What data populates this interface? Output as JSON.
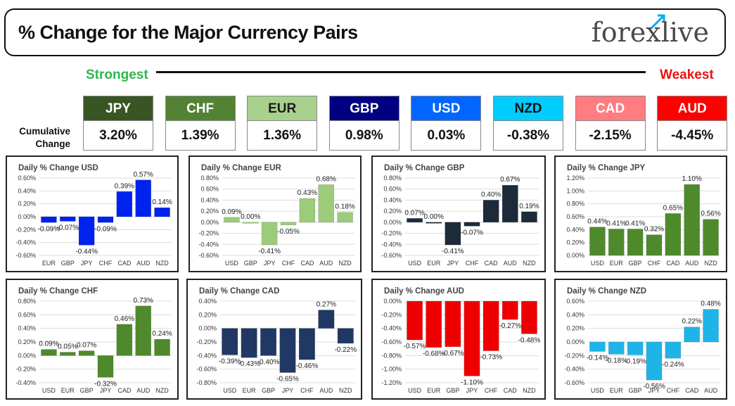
{
  "header": {
    "title": "% Change for the Major Currency Pairs",
    "logo": "forexlive"
  },
  "ranking": {
    "strongest_label": "Strongest",
    "weakest_label": "Weakest",
    "cumulative_label_1": "Cumulative",
    "cumulative_label_2": "Change",
    "currencies": [
      {
        "name": "JPY",
        "value": "3.20%",
        "bg": "#375623",
        "fg": "#ffffff"
      },
      {
        "name": "CHF",
        "value": "1.39%",
        "bg": "#548235",
        "fg": "#ffffff"
      },
      {
        "name": "EUR",
        "value": "1.36%",
        "bg": "#a9d18e",
        "fg": "#1a1a1a"
      },
      {
        "name": "GBP",
        "value": "0.98%",
        "bg": "#000080",
        "fg": "#ffffff"
      },
      {
        "name": "USD",
        "value": "0.03%",
        "bg": "#0066ff",
        "fg": "#ffffff"
      },
      {
        "name": "NZD",
        "value": "-0.38%",
        "bg": "#00ccff",
        "fg": "#111111"
      },
      {
        "name": "CAD",
        "value": "-2.15%",
        "bg": "#ff7c80",
        "fg": "#ffffff"
      },
      {
        "name": "AUD",
        "value": "-4.45%",
        "bg": "#ff0000",
        "fg": "#ffffff"
      }
    ]
  },
  "chart_data": [
    {
      "type": "bar",
      "title": "Daily % Change USD",
      "categories": [
        "EUR",
        "GBP",
        "JPY",
        "CHF",
        "CAD",
        "AUD",
        "NZD"
      ],
      "values": [
        -0.09,
        -0.07,
        -0.44,
        -0.09,
        0.39,
        0.57,
        0.14
      ],
      "value_labels": [
        "-0.09%",
        "-0.07%",
        "-0.44%",
        "-0.09%",
        "0.39%",
        "0.57%",
        "0.14%"
      ],
      "ylim": [
        -0.6,
        0.6
      ],
      "ticks": [
        "-0.60%",
        "-0.40%",
        "-0.20%",
        "0.00%",
        "0.20%",
        "0.40%",
        "0.60%"
      ],
      "color": "#0022ee"
    },
    {
      "type": "bar",
      "title": "Daily % Change EUR",
      "categories": [
        "USD",
        "GBP",
        "JPY",
        "CHF",
        "CAD",
        "AUD",
        "NZD"
      ],
      "values": [
        0.09,
        0.0,
        -0.41,
        -0.05,
        0.43,
        0.68,
        0.18
      ],
      "value_labels": [
        "0.09%",
        "0.00%",
        "-0.41%",
        "-0.05%",
        "0.43%",
        "0.68%",
        "0.18%"
      ],
      "ylim": [
        -0.6,
        0.8
      ],
      "ticks": [
        "-0.60%",
        "-0.40%",
        "-0.20%",
        "0.00%",
        "0.20%",
        "0.40%",
        "0.60%",
        "0.80%"
      ],
      "color": "#9ccb7a"
    },
    {
      "type": "bar",
      "title": "Daily % Change GBP",
      "categories": [
        "USD",
        "EUR",
        "JPY",
        "CHF",
        "CAD",
        "AUD",
        "NZD"
      ],
      "values": [
        0.07,
        0.0,
        -0.41,
        -0.07,
        0.4,
        0.67,
        0.19
      ],
      "value_labels": [
        "0.07%",
        "0.00%",
        "-0.41%",
        "-0.07%",
        "0.40%",
        "0.67%",
        "0.19%"
      ],
      "ylim": [
        -0.6,
        0.8
      ],
      "ticks": [
        "-0.60%",
        "-0.40%",
        "-0.20%",
        "0.00%",
        "0.20%",
        "0.40%",
        "0.60%",
        "0.80%"
      ],
      "color": "#1c2a3a"
    },
    {
      "type": "bar",
      "title": "Daily % Change JPY",
      "categories": [
        "USD",
        "EUR",
        "GBP",
        "CHF",
        "CAD",
        "AUD",
        "NZD"
      ],
      "values": [
        0.44,
        0.41,
        0.41,
        0.32,
        0.65,
        1.1,
        0.56
      ],
      "value_labels": [
        "0.44%",
        "0.41%",
        "0.41%",
        "0.32%",
        "0.65%",
        "1.10%",
        "0.56%"
      ],
      "ylim": [
        0,
        1.2
      ],
      "ticks": [
        "0.00%",
        "0.20%",
        "0.40%",
        "0.60%",
        "0.80%",
        "1.00%",
        "1.20%"
      ],
      "color": "#4e8a2c"
    },
    {
      "type": "bar",
      "title": "Daily % Change CHF",
      "categories": [
        "USD",
        "EUR",
        "GBP",
        "JPY",
        "CAD",
        "AUD",
        "NZD"
      ],
      "values": [
        0.09,
        0.05,
        0.07,
        -0.32,
        0.46,
        0.73,
        0.24
      ],
      "value_labels": [
        "0.09%",
        "0.05%",
        "0.07%",
        "-0.32%",
        "0.46%",
        "0.73%",
        "0.24%"
      ],
      "ylim": [
        -0.4,
        0.8
      ],
      "ticks": [
        "-0.40%",
        "-0.20%",
        "0.00%",
        "0.20%",
        "0.40%",
        "0.60%",
        "0.80%"
      ],
      "color": "#4e8a2c"
    },
    {
      "type": "bar",
      "title": "Daily % Change CAD",
      "categories": [
        "USD",
        "EUR",
        "GBP",
        "JPY",
        "CHF",
        "AUD",
        "NZD"
      ],
      "values": [
        -0.39,
        -0.43,
        -0.4,
        -0.65,
        -0.46,
        0.27,
        -0.22
      ],
      "value_labels": [
        "-0.39%",
        "-0.43%",
        "-0.40%",
        "-0.65%",
        "-0.46%",
        "0.27%",
        "-0.22%"
      ],
      "ylim": [
        -0.8,
        0.4
      ],
      "ticks": [
        "-0.80%",
        "-0.60%",
        "-0.40%",
        "-0.20%",
        "0.00%",
        "0.20%",
        "0.40%"
      ],
      "color": "#203864"
    },
    {
      "type": "bar",
      "title": "Daily % Change AUD",
      "categories": [
        "USD",
        "EUR",
        "GBP",
        "JPY",
        "CHF",
        "CAD",
        "NZD"
      ],
      "values": [
        -0.57,
        -0.68,
        -0.67,
        -1.1,
        -0.73,
        -0.27,
        -0.48
      ],
      "value_labels": [
        "-0.57%",
        "-0.68%",
        "-0.67%",
        "-1.10%",
        "-0.73%",
        "-0.27%",
        "-0.48%"
      ],
      "ylim": [
        -1.2,
        0
      ],
      "ticks": [
        "-1.20%",
        "-1.00%",
        "-0.80%",
        "-0.60%",
        "-0.40%",
        "-0.20%",
        "0.00%"
      ],
      "color": "#ee0000"
    },
    {
      "type": "bar",
      "title": "Daily % Change NZD",
      "categories": [
        "USD",
        "EUR",
        "GBP",
        "JPY",
        "CHF",
        "CAD",
        "AUD"
      ],
      "values": [
        -0.14,
        -0.18,
        -0.19,
        -0.56,
        -0.24,
        0.22,
        0.48
      ],
      "value_labels": [
        "-0.14%",
        "-0.18%",
        "-0.19%",
        "-0.56%",
        "-0.24%",
        "0.22%",
        "0.48%"
      ],
      "ylim": [
        -0.6,
        0.6
      ],
      "ticks": [
        "-0.60%",
        "-0.40%",
        "-0.20%",
        "0.00%",
        "0.20%",
        "0.40%",
        "0.60%"
      ],
      "color": "#1fb4e8"
    }
  ]
}
